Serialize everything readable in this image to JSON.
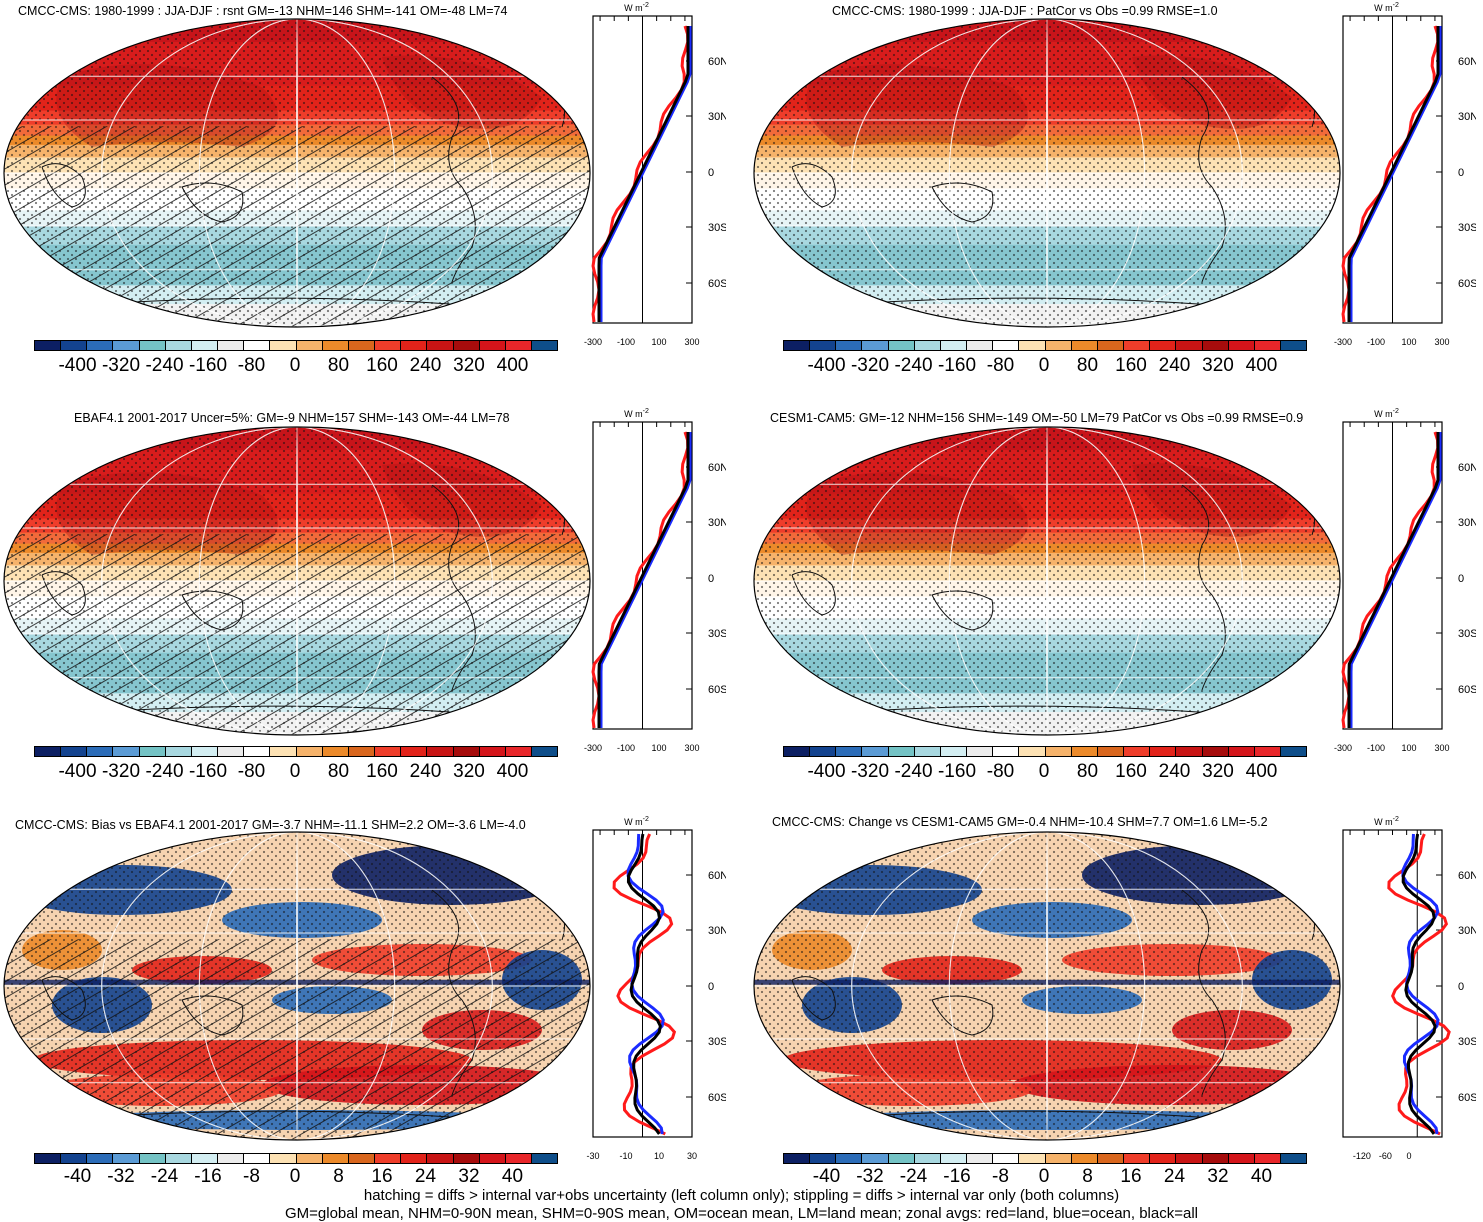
{
  "panels": [
    {
      "title": "CMCC-CMS: 1980-1999 : JJA-DJF : rsnt GM=-13 NHM=146 SHM=-141 OM=-48 LM=74",
      "kind": "clim",
      "hatch": true
    },
    {
      "title": "CMCC-CMS: 1980-1999 : JJA-DJF : PatCor vs Obs =0.99 RMSE=1.0",
      "kind": "clim",
      "hatch": false
    },
    {
      "title": "EBAF4.1 2001-2017 Uncer=5%: GM=-9 NHM=157 SHM=-143 OM=-44 LM=78",
      "kind": "clim",
      "hatch": true
    },
    {
      "title": "CESM1-CAM5: GM=-12 NHM=156 SHM=-149 OM=-50 LM=79 PatCor vs Obs =0.99 RMSE=0.9",
      "kind": "clim",
      "hatch": false
    },
    {
      "title": "CMCC-CMS: Bias vs EBAF4.1 2001-2017 GM=-3.7 NHM=-11.1 SHM=2.2 OM=-3.6 LM=-4.0",
      "kind": "diff",
      "hatch": true
    },
    {
      "title": "CMCC-CMS: Change vs CESM1-CAM5 GM=-0.4 NHM=-10.4 SHM=7.7 OM=1.6 LM=-5.2",
      "kind": "diff",
      "hatch": false
    }
  ],
  "colorbar": {
    "colors": [
      "#0c1f63",
      "#13438f",
      "#2b6cb8",
      "#5b9bd5",
      "#74c3c5",
      "#a8d8e0",
      "#d3eef2",
      "#ececec",
      "#ffffff",
      "#fde2b4",
      "#f6b36b",
      "#ec8a2a",
      "#d9661d",
      "#ef3d2a",
      "#e2231a",
      "#c81414",
      "#a60c0c",
      "#d4141a",
      "#e8262a",
      "#0e4e8a"
    ],
    "clim_labels": [
      "-400",
      "-320",
      "-240",
      "-160",
      "-80",
      "0",
      "80",
      "160",
      "240",
      "320",
      "400"
    ],
    "diff_labels": [
      "-40",
      "-32",
      "-24",
      "-16",
      "-8",
      "0",
      "8",
      "16",
      "24",
      "32",
      "40"
    ]
  },
  "zonal": {
    "unit_label": "W m",
    "unit_sup": "-2",
    "lat_labels": [
      "60N",
      "30N",
      "0",
      "30S",
      "60S"
    ],
    "x_labels_clim": [
      "-300",
      "-100",
      "100",
      "300"
    ],
    "x_labels_diff_left": [
      "-30",
      "-10",
      "10",
      "30"
    ],
    "x_labels_diff_right": [
      "-120",
      "-60",
      "0"
    ]
  },
  "footer": {
    "line1": "hatching = diffs > internal var+obs uncertainty (left column only); stippling = diffs > internal var only (both columns)",
    "line2": "GM=global mean, NHM=0-90N mean, SHM=0-90S mean, OM=ocean mean, LM=land mean; zonal avgs: red=land, blue=ocean, black=all"
  }
}
